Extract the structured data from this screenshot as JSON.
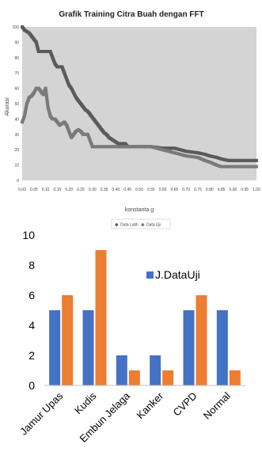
{
  "chart_data": [
    {
      "type": "scatter",
      "title": "Grafik Training Citra Buah dengan FFT",
      "xlabel": "konstanta g",
      "ylabel": "Akurasi",
      "xlim": [
        0,
        1.0
      ],
      "ylim": [
        0,
        100
      ],
      "x_ticks": [
        "0.00",
        "0.05",
        "0.10",
        "0.15",
        "0.20",
        "0.25",
        "0.30",
        "0.35",
        "0.40",
        "0.45",
        "0.50",
        "0.55",
        "0.60",
        "0.65",
        "0.70",
        "0.75",
        "0.80",
        "0.85",
        "0.90",
        "0.95",
        "1.00"
      ],
      "y_ticks": [
        "0",
        "10",
        "20",
        "30",
        "40",
        "50",
        "60",
        "70",
        "80",
        "90",
        "100"
      ],
      "grid": false,
      "legend": "bottom",
      "series": [
        {
          "name": "Data Latih",
          "color": "#5a5a5a",
          "points": [
            [
              0.0,
              100
            ],
            [
              0.01,
              98
            ],
            [
              0.02,
              97
            ],
            [
              0.03,
              96
            ],
            [
              0.04,
              94
            ],
            [
              0.05,
              92
            ],
            [
              0.06,
              90
            ],
            [
              0.07,
              84
            ],
            [
              0.08,
              84
            ],
            [
              0.09,
              84
            ],
            [
              0.1,
              84
            ],
            [
              0.11,
              84
            ],
            [
              0.12,
              84
            ],
            [
              0.13,
              80
            ],
            [
              0.14,
              76
            ],
            [
              0.15,
              74
            ],
            [
              0.16,
              74
            ],
            [
              0.17,
              74
            ],
            [
              0.18,
              70
            ],
            [
              0.19,
              66
            ],
            [
              0.2,
              62
            ],
            [
              0.21,
              60
            ],
            [
              0.22,
              57
            ],
            [
              0.23,
              54
            ],
            [
              0.24,
              52
            ],
            [
              0.25,
              50
            ],
            [
              0.26,
              48
            ],
            [
              0.27,
              46
            ],
            [
              0.28,
              45
            ],
            [
              0.29,
              43
            ],
            [
              0.3,
              41
            ],
            [
              0.31,
              39
            ],
            [
              0.32,
              37
            ],
            [
              0.33,
              35
            ],
            [
              0.34,
              33
            ],
            [
              0.35,
              31
            ],
            [
              0.36,
              30
            ],
            [
              0.37,
              28
            ],
            [
              0.38,
              27
            ],
            [
              0.39,
              26
            ],
            [
              0.4,
              25
            ],
            [
              0.41,
              24
            ],
            [
              0.42,
              24
            ],
            [
              0.43,
              24
            ],
            [
              0.44,
              24
            ],
            [
              0.45,
              22
            ],
            [
              0.5,
              22
            ],
            [
              0.55,
              22
            ],
            [
              0.6,
              21
            ],
            [
              0.65,
              21
            ],
            [
              0.7,
              19
            ],
            [
              0.75,
              18
            ],
            [
              0.78,
              17
            ],
            [
              0.8,
              16
            ],
            [
              0.83,
              15
            ],
            [
              0.85,
              14
            ],
            [
              0.88,
              13
            ],
            [
              0.9,
              13
            ],
            [
              0.92,
              13
            ],
            [
              0.95,
              13
            ],
            [
              1.0,
              13
            ]
          ]
        },
        {
          "name": "Data Uji",
          "color": "#7a7a7a",
          "points": [
            [
              0.0,
              38
            ],
            [
              0.01,
              42
            ],
            [
              0.02,
              50
            ],
            [
              0.03,
              54
            ],
            [
              0.04,
              55
            ],
            [
              0.05,
              57
            ],
            [
              0.06,
              60
            ],
            [
              0.07,
              60
            ],
            [
              0.08,
              58
            ],
            [
              0.09,
              56
            ],
            [
              0.1,
              60
            ],
            [
              0.11,
              48
            ],
            [
              0.12,
              42
            ],
            [
              0.13,
              40
            ],
            [
              0.14,
              40
            ],
            [
              0.15,
              38
            ],
            [
              0.16,
              36
            ],
            [
              0.17,
              37
            ],
            [
              0.18,
              38
            ],
            [
              0.19,
              36
            ],
            [
              0.2,
              32
            ],
            [
              0.21,
              28
            ],
            [
              0.22,
              30
            ],
            [
              0.23,
              32
            ],
            [
              0.24,
              33
            ],
            [
              0.25,
              32
            ],
            [
              0.26,
              30
            ],
            [
              0.27,
              30
            ],
            [
              0.28,
              30
            ],
            [
              0.3,
              22
            ],
            [
              0.35,
              22
            ],
            [
              0.4,
              22
            ],
            [
              0.45,
              22
            ],
            [
              0.5,
              22
            ],
            [
              0.55,
              22
            ],
            [
              0.6,
              20
            ],
            [
              0.65,
              18
            ],
            [
              0.7,
              16
            ],
            [
              0.75,
              15
            ],
            [
              0.78,
              13
            ],
            [
              0.8,
              12
            ],
            [
              0.83,
              10
            ],
            [
              0.85,
              9
            ],
            [
              0.88,
              9
            ],
            [
              0.9,
              9
            ],
            [
              0.95,
              9
            ],
            [
              1.0,
              9
            ]
          ]
        }
      ]
    },
    {
      "type": "bar",
      "title": "",
      "xlabel": "",
      "ylabel": "",
      "ylim": [
        0,
        10
      ],
      "y_ticks": [
        "0",
        "2",
        "4",
        "6",
        "8",
        "10"
      ],
      "grid": false,
      "legend": "top-right",
      "categories": [
        "Jamur Upas",
        "Kudis",
        "Embun Jelaga",
        "Kanker",
        "CVPD",
        "Normal"
      ],
      "series": [
        {
          "name": "J.DataUji",
          "color": "#4472c4",
          "values": [
            5,
            5,
            2,
            2,
            5,
            5
          ]
        },
        {
          "name": "",
          "color": "#ed7d31",
          "values": [
            6,
            9,
            1,
            1,
            6,
            1
          ]
        }
      ]
    }
  ]
}
